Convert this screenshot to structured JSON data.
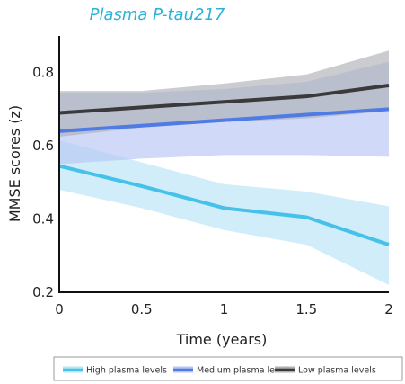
{
  "chart_data": {
    "type": "line",
    "title": "Plasma P-tau217",
    "xlabel": "Time (years)",
    "ylabel": "MMSE scores (z)",
    "x": [
      0,
      0.5,
      1,
      1.5,
      2
    ],
    "x_tick_labels": [
      "0",
      "0.5",
      "1",
      "1.5",
      "2"
    ],
    "xlim": [
      0,
      2
    ],
    "ylim": [
      0.2,
      0.9
    ],
    "y_ticks": [
      0.2,
      0.4,
      0.6,
      0.8
    ],
    "y_tick_labels": [
      "0.2",
      "0.4",
      "0.6",
      "0.8"
    ],
    "grid": false,
    "legend_position": "bottom",
    "series": [
      {
        "name": "High plasma levels",
        "color": "#45c1ea",
        "band_color": "#b7e4f6",
        "values": [
          0.545,
          0.49,
          0.43,
          0.405,
          0.33
        ],
        "lower": [
          0.48,
          0.43,
          0.37,
          0.33,
          0.22
        ],
        "upper": [
          0.615,
          0.555,
          0.495,
          0.475,
          0.435
        ]
      },
      {
        "name": "Medium plasma levels",
        "color": "#4f7be6",
        "band_color": "#b7c6f4",
        "values": [
          0.64,
          0.655,
          0.67,
          0.685,
          0.7
        ],
        "lower": [
          0.55,
          0.565,
          0.575,
          0.575,
          0.57
        ],
        "upper": [
          0.745,
          0.745,
          0.755,
          0.775,
          0.83
        ]
      },
      {
        "name": "Low plasma levels",
        "color": "#3a3a3a",
        "band_color": "#aeb0b5",
        "values": [
          0.69,
          0.705,
          0.72,
          0.735,
          0.765
        ],
        "lower": [
          0.625,
          0.65,
          0.665,
          0.675,
          0.695
        ],
        "upper": [
          0.75,
          0.75,
          0.77,
          0.795,
          0.86
        ]
      }
    ]
  }
}
